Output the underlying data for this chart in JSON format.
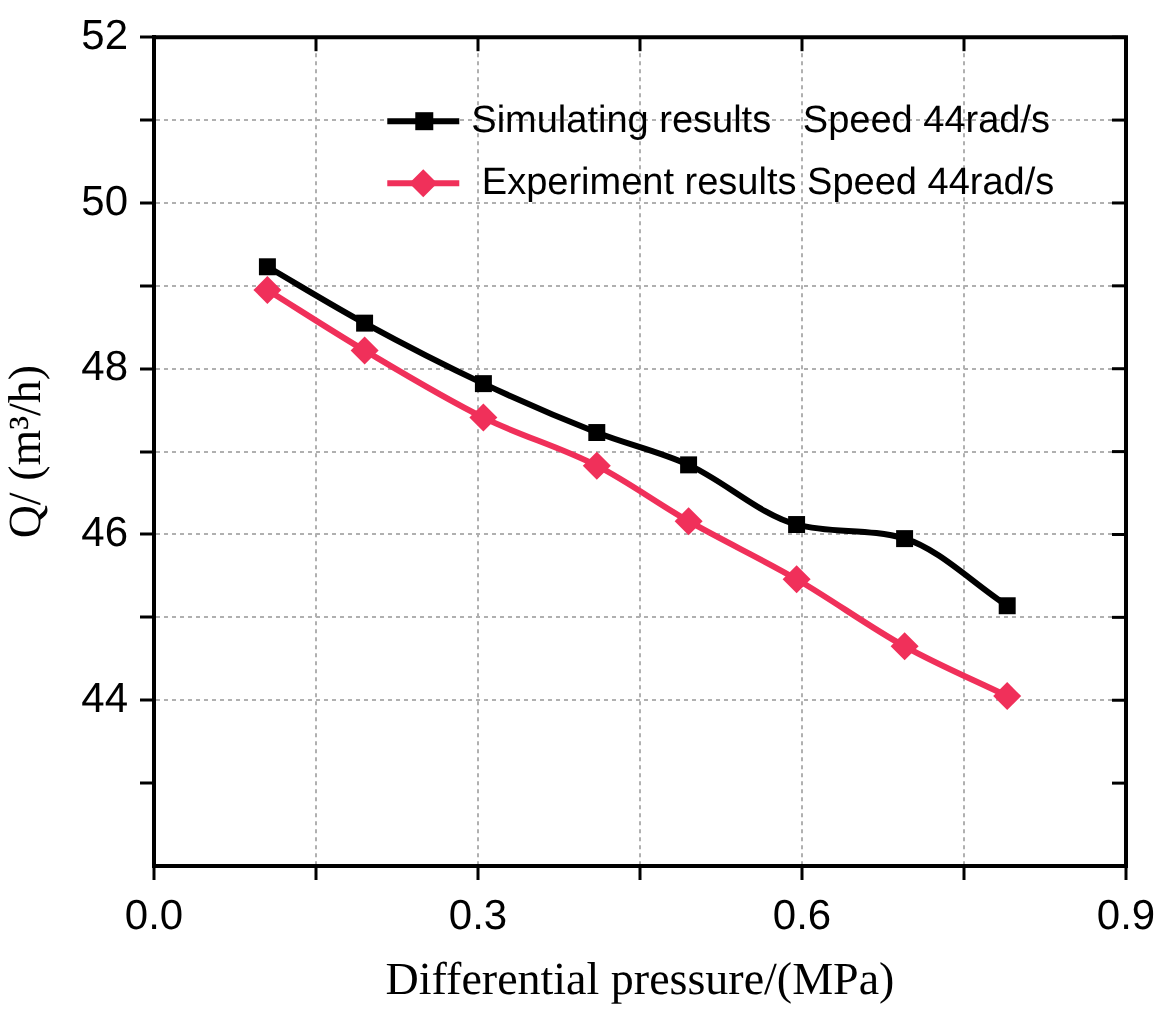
{
  "chart_data": {
    "type": "line",
    "xlabel": "Differential pressure/(MPa)",
    "ylabel": "Q/ (m³/h)",
    "xlim": [
      0,
      0.9
    ],
    "xticks": [
      {
        "value": 0,
        "label": "0.0"
      },
      {
        "value": 0.15,
        "label": null
      },
      {
        "value": 0.3,
        "label": "0.3"
      },
      {
        "value": 0.45,
        "label": null
      },
      {
        "value": 0.6,
        "label": "0.6"
      },
      {
        "value": 0.75,
        "label": null
      },
      {
        "value": 0.9,
        "label": "0.9"
      }
    ],
    "ylim": [
      42,
      52
    ],
    "yticks": [
      {
        "value": 43,
        "label": null
      },
      44,
      {
        "value": 45,
        "label": null
      },
      46,
      {
        "value": 47,
        "label": null
      },
      48,
      {
        "value": 49,
        "label": null
      },
      50,
      {
        "value": 51,
        "label": null
      },
      52
    ],
    "grid": true,
    "legend": "top",
    "line_style": "solid",
    "x": [
      0.105,
      0.195,
      0.305,
      0.41,
      0.495,
      0.595,
      0.695,
      0.79
    ],
    "series": [
      {
        "name": "Simulating results   Speed 44rad/s",
        "color": "#000000",
        "marker": "square",
        "values": [
          49.23,
          48.55,
          47.82,
          47.23,
          46.84,
          46.12,
          45.95,
          45.14
        ]
      },
      {
        "name": " Experiment results Speed 44rad/s",
        "color": "#f0305a",
        "marker": "diamond",
        "values": [
          48.95,
          48.22,
          47.41,
          46.83,
          46.16,
          45.46,
          44.65,
          44.05
        ]
      }
    ]
  }
}
